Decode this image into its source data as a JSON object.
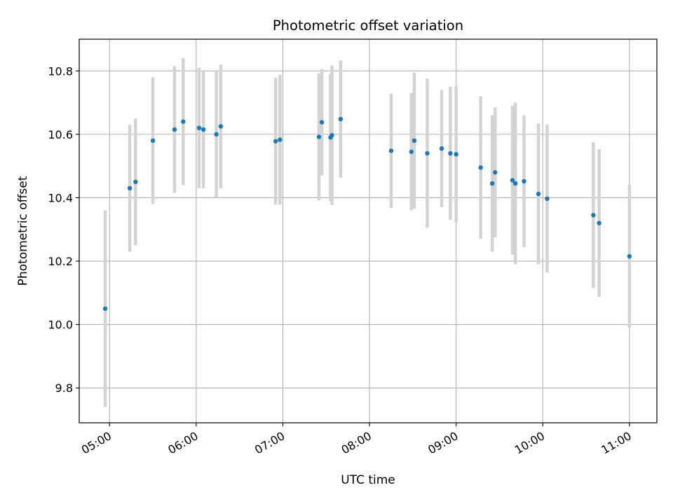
{
  "chart_data": {
    "type": "scatter",
    "title": "Photometric offset variation",
    "xlabel": "UTC time",
    "ylabel": "Photometric offset",
    "grid": true,
    "xlim": [
      "04:39",
      "11:19"
    ],
    "ylim": [
      9.69,
      10.9
    ],
    "x_ticks": [
      "05:00",
      "06:00",
      "07:00",
      "08:00",
      "09:00",
      "10:00",
      "11:00"
    ],
    "y_ticks": [
      "9.8",
      "10.0",
      "10.2",
      "10.4",
      "10.6",
      "10.8"
    ],
    "colors": {
      "points": "#1f77b4",
      "error_bars": "#d3d3d3",
      "grid": "#b0b0b0"
    },
    "series": [
      {
        "points": [
          {
            "x": "04:57",
            "y": 10.05,
            "err": 0.31
          },
          {
            "x": "05:14",
            "y": 10.43,
            "err": 0.2
          },
          {
            "x": "05:18",
            "y": 10.45,
            "err": 0.2
          },
          {
            "x": "05:30",
            "y": 10.58,
            "err": 0.2
          },
          {
            "x": "05:45",
            "y": 10.615,
            "err": 0.2
          },
          {
            "x": "05:51",
            "y": 10.64,
            "err": 0.2
          },
          {
            "x": "06:02",
            "y": 10.62,
            "err": 0.19
          },
          {
            "x": "06:05",
            "y": 10.615,
            "err": 0.185
          },
          {
            "x": "06:14",
            "y": 10.6,
            "err": 0.2
          },
          {
            "x": "06:17",
            "y": 10.625,
            "err": 0.195
          },
          {
            "x": "06:55",
            "y": 10.578,
            "err": 0.2
          },
          {
            "x": "06:58",
            "y": 10.583,
            "err": 0.205
          },
          {
            "x": "07:25",
            "y": 10.592,
            "err": 0.2
          },
          {
            "x": "07:27",
            "y": 10.638,
            "err": 0.168
          },
          {
            "x": "07:33",
            "y": 10.59,
            "err": 0.2
          },
          {
            "x": "07:34",
            "y": 10.597,
            "err": 0.22
          },
          {
            "x": "07:40",
            "y": 10.648,
            "err": 0.185
          },
          {
            "x": "08:15",
            "y": 10.548,
            "err": 0.18
          },
          {
            "x": "08:29",
            "y": 10.545,
            "err": 0.185
          },
          {
            "x": "08:31",
            "y": 10.58,
            "err": 0.215
          },
          {
            "x": "08:40",
            "y": 10.54,
            "err": 0.235
          },
          {
            "x": "08:50",
            "y": 10.555,
            "err": 0.185
          },
          {
            "x": "08:56",
            "y": 10.54,
            "err": 0.21
          },
          {
            "x": "09:00",
            "y": 10.537,
            "err": 0.215
          },
          {
            "x": "09:17",
            "y": 10.495,
            "err": 0.225
          },
          {
            "x": "09:25",
            "y": 10.445,
            "err": 0.215
          },
          {
            "x": "09:27",
            "y": 10.48,
            "err": 0.205
          },
          {
            "x": "09:39",
            "y": 10.455,
            "err": 0.235
          },
          {
            "x": "09:41",
            "y": 10.445,
            "err": 0.255
          },
          {
            "x": "09:47",
            "y": 10.452,
            "err": 0.208
          },
          {
            "x": "09:57",
            "y": 10.412,
            "err": 0.222
          },
          {
            "x": "10:03",
            "y": 10.397,
            "err": 0.233
          },
          {
            "x": "10:35",
            "y": 10.345,
            "err": 0.23
          },
          {
            "x": "10:39",
            "y": 10.32,
            "err": 0.233
          },
          {
            "x": "11:00",
            "y": 10.215,
            "err": 0.225
          }
        ]
      }
    ]
  }
}
